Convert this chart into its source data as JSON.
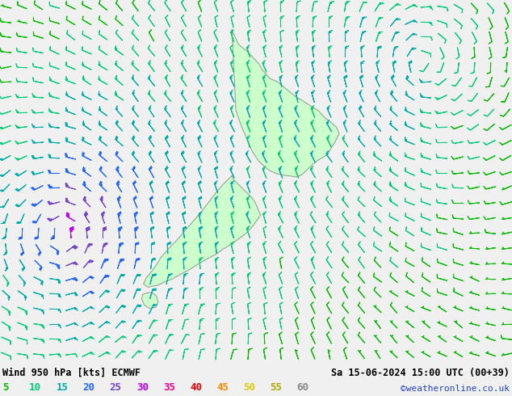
{
  "title_left": "Wind 950 hPa [kts] ECMWF",
  "title_right": "Sa 15-06-2024 15:00 UTC (00+39)",
  "credit": "©weatheronline.co.uk",
  "legend_values": [
    5,
    10,
    15,
    20,
    25,
    30,
    35,
    40,
    45,
    50,
    55,
    60
  ],
  "leg_colors": [
    "#00bb00",
    "#00cc77",
    "#00aaaa",
    "#2266ff",
    "#7744cc",
    "#bb00ee",
    "#ee0099",
    "#ee0000",
    "#ff8800",
    "#ddcc00",
    "#aaaa00",
    "#888888"
  ],
  "bg_color": "#f0f0f0",
  "map_land_color": "#ccffcc",
  "map_border_color": "#888888",
  "figsize": [
    6.34,
    4.9
  ],
  "dpi": 100,
  "lon_min": 160.0,
  "lon_max": 188.0,
  "lat_min": -50.0,
  "lat_max": -33.0,
  "speed_thresholds": [
    5,
    10,
    15,
    20,
    25,
    30,
    35,
    40,
    45,
    50,
    55,
    60
  ],
  "speed_colors": [
    "#00bb00",
    "#00cc77",
    "#00aaaa",
    "#2266ff",
    "#7744cc",
    "#bb00ee",
    "#ee0099",
    "#ee0000",
    "#ff8800",
    "#ddcc00",
    "#aaaa00",
    "#888888"
  ],
  "cyclone_lon": 163.5,
  "cyclone_lat": -44.0,
  "anticyclone_lon": 183.0,
  "anticyclone_lat": -36.0
}
